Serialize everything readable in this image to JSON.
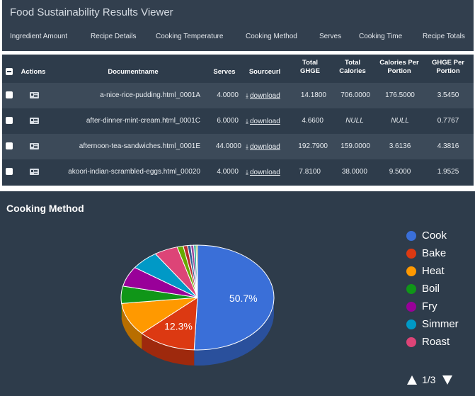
{
  "app": {
    "title": "Food Sustainability Results Viewer"
  },
  "tabs": [
    "Ingredient Amount",
    "Recipe Details",
    "Cooking Temperature",
    "Cooking Method",
    "Serves",
    "Cooking Time",
    "Recipe Totals"
  ],
  "table": {
    "headers": {
      "actions": "Actions",
      "documentname": "Documentname",
      "serves": "Serves",
      "sourceurl": "Sourceurl",
      "total_ghge_1": "Total",
      "total_ghge_2": "GHGE",
      "total_cal_1": "Total",
      "total_cal_2": "Calories",
      "cpp_1": "Calories Per",
      "cpp_2": "Portion",
      "gpp_1": "GHGE Per",
      "gpp_2": "Portion"
    },
    "rows": [
      {
        "doc": "a-nice-rice-pudding.html_0001A",
        "serves": "4.0000",
        "source": "download",
        "ghge": "14.1800",
        "calories": "706.0000",
        "cpp": "176.5000",
        "gpp": "3.5450"
      },
      {
        "doc": "after-dinner-mint-cream.html_0001C",
        "serves": "6.0000",
        "source": "download",
        "ghge": "4.6600",
        "calories": "NULL",
        "cpp": "NULL",
        "gpp": "0.7767"
      },
      {
        "doc": "afternoon-tea-sandwiches.html_0001E",
        "serves": "44.0000",
        "source": "download",
        "ghge": "192.7900",
        "calories": "159.0000",
        "cpp": "3.6136",
        "gpp": "4.3816"
      },
      {
        "doc": "akoori-indian-scrambled-eggs.html_00020",
        "serves": "4.0000",
        "source": "download",
        "ghge": "7.8100",
        "calories": "38.0000",
        "cpp": "9.5000",
        "gpp": "1.9525"
      }
    ]
  },
  "chart_data": {
    "type": "pie",
    "title": "Cooking Method",
    "slices": [
      {
        "label": "Cook",
        "value": 50.7,
        "color": "#3a6fd8",
        "data_label": "50.7%"
      },
      {
        "label": "Bake",
        "value": 12.3,
        "color": "#dc3912",
        "data_label": "12.3%"
      },
      {
        "label": "Heat",
        "value": 10.2,
        "color": "#ff9900"
      },
      {
        "label": "Boil",
        "value": 5.3,
        "color": "#109618"
      },
      {
        "label": "Fry",
        "value": 6.2,
        "color": "#990099"
      },
      {
        "label": "Simmer",
        "value": 6.0,
        "color": "#0099c6"
      },
      {
        "label": "Roast",
        "value": 5.0,
        "color": "#dd4477"
      },
      {
        "label": "",
        "value": 1.3,
        "color": "#66aa00"
      },
      {
        "label": "",
        "value": 0.9,
        "color": "#b82e2e"
      },
      {
        "label": "",
        "value": 0.7,
        "color": "#316395"
      },
      {
        "label": "",
        "value": 0.6,
        "color": "#994499"
      },
      {
        "label": "",
        "value": 0.5,
        "color": "#22aa99"
      },
      {
        "label": "",
        "value": 0.3,
        "color": "#aaaa11"
      }
    ],
    "legend_items": [
      {
        "label": "Cook",
        "color": "#3a6fd8"
      },
      {
        "label": "Bake",
        "color": "#dc3912"
      },
      {
        "label": "Heat",
        "color": "#ff9900"
      },
      {
        "label": "Boil",
        "color": "#109618"
      },
      {
        "label": "Fry",
        "color": "#990099"
      },
      {
        "label": "Simmer",
        "color": "#0099c6"
      },
      {
        "label": "Roast",
        "color": "#dd4477"
      }
    ],
    "legend_position": "right",
    "pager": "1/3"
  }
}
